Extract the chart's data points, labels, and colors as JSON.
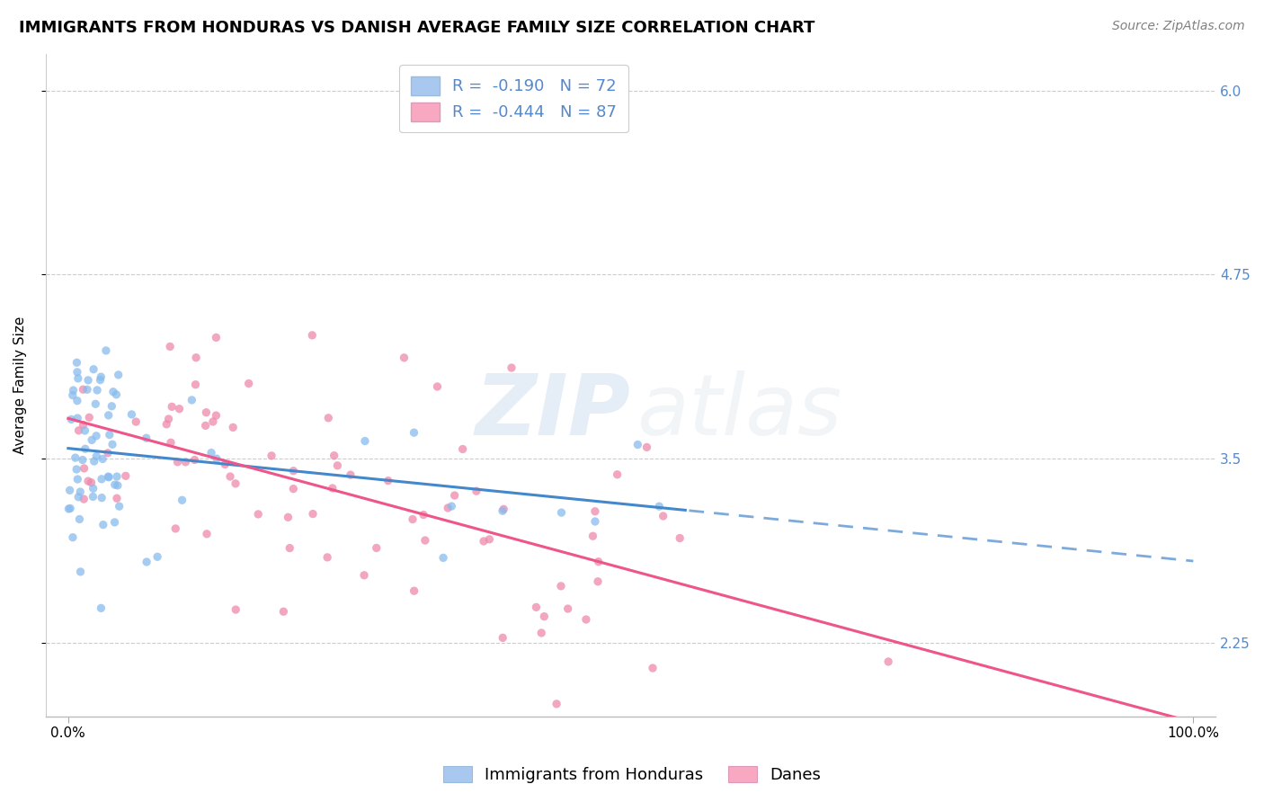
{
  "title": "IMMIGRANTS FROM HONDURAS VS DANISH AVERAGE FAMILY SIZE CORRELATION CHART",
  "source": "Source: ZipAtlas.com",
  "ylabel": "Average Family Size",
  "blue_R": -0.19,
  "blue_N": 72,
  "pink_R": -0.444,
  "pink_N": 87,
  "blue_legend_color": "#a8c8f0",
  "pink_legend_color": "#f8a8c0",
  "blue_line_color": "#4488cc",
  "pink_line_color": "#ee5588",
  "blue_marker_color": "#88bbee",
  "pink_marker_color": "#ee88aa",
  "ymin": 1.75,
  "ymax": 6.25,
  "yticks": [
    2.25,
    3.5,
    4.75,
    6.0
  ],
  "xmin": -0.02,
  "xmax": 1.02,
  "xticks": [
    0.0,
    1.0
  ],
  "xticklabels": [
    "0.0%",
    "100.0%"
  ],
  "background_color": "#ffffff",
  "grid_color": "#cccccc",
  "title_fontsize": 13,
  "source_fontsize": 10,
  "axis_fontsize": 11,
  "tick_fontsize": 11,
  "legend_fontsize": 13,
  "watermark_zip": "ZIP",
  "watermark_atlas": "atlas",
  "blue_seed": 12,
  "pink_seed": 7,
  "right_tick_color": "#5588cc"
}
